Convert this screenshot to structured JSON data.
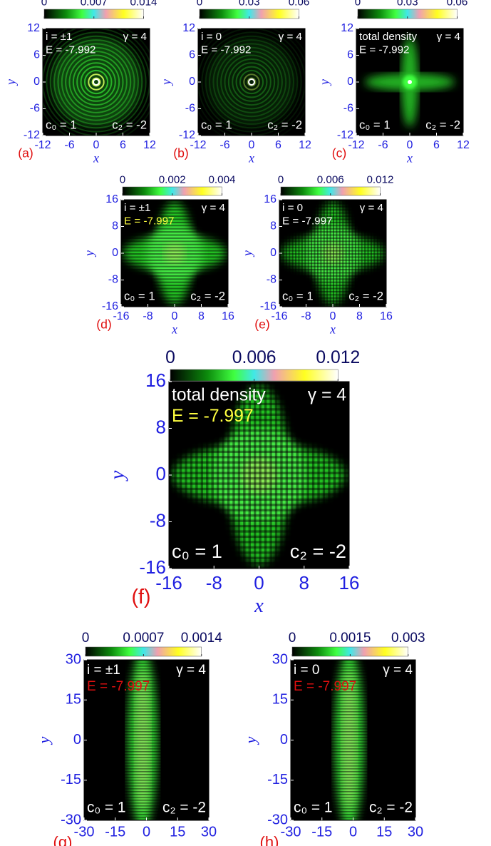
{
  "chart_data": [
    {
      "type": "heatmap",
      "panel_label": "(a)",
      "xlabel": "x",
      "ylabel": "y",
      "xlim": [
        -12,
        12
      ],
      "ylim": [
        -12,
        12
      ],
      "xticks": [
        -12,
        -6,
        0,
        6,
        12
      ],
      "yticks": [
        -12,
        -6,
        0,
        6,
        12
      ],
      "clim": [
        0,
        0.014
      ],
      "cticks": [
        0,
        0.007,
        0.014
      ],
      "annotations": {
        "top_left": "i = ±1",
        "gamma": "γ = 4",
        "energy": "E = -7.992",
        "c0": "c₀ = 1",
        "c2": "c₂ = -2"
      },
      "energy_color": "#ffffff"
    },
    {
      "type": "heatmap",
      "panel_label": "(b)",
      "xlabel": "x",
      "ylabel": "y",
      "xlim": [
        -12,
        12
      ],
      "ylim": [
        -12,
        12
      ],
      "xticks": [
        -12,
        -6,
        0,
        6,
        12
      ],
      "yticks": [
        -12,
        -6,
        0,
        6,
        12
      ],
      "clim": [
        0,
        0.06
      ],
      "cticks": [
        0,
        0.03,
        0.06
      ],
      "annotations": {
        "top_left": "i = 0",
        "gamma": "γ = 4",
        "energy": "E = -7.992",
        "c0": "c₀ = 1",
        "c2": "c₂ = -2"
      },
      "energy_color": "#ffffff"
    },
    {
      "type": "heatmap",
      "panel_label": "(c)",
      "xlabel": "x",
      "ylabel": "y",
      "xlim": [
        -12,
        12
      ],
      "ylim": [
        -12,
        12
      ],
      "xticks": [
        -12,
        -6,
        0,
        6,
        12
      ],
      "yticks": [
        -12,
        -6,
        0,
        6,
        12
      ],
      "clim": [
        0,
        0.06
      ],
      "cticks": [
        0,
        0.03,
        0.06
      ],
      "annotations": {
        "top_left": "total density",
        "gamma": "γ = 4",
        "energy": "E = -7.992",
        "c0": "c₀ = 1",
        "c2": "c₂ = -2"
      },
      "energy_color": "#ffffff"
    },
    {
      "type": "heatmap",
      "panel_label": "(d)",
      "xlabel": "x",
      "ylabel": "y",
      "xlim": [
        -16,
        16
      ],
      "ylim": [
        -16,
        16
      ],
      "xticks": [
        -16,
        -8,
        0,
        8,
        16
      ],
      "yticks": [
        -16,
        -8,
        0,
        8,
        16
      ],
      "clim": [
        0,
        0.004
      ],
      "cticks": [
        0,
        0.002,
        0.004
      ],
      "annotations": {
        "top_left": "i = ±1",
        "gamma": "γ = 4",
        "energy": "E = -7.997",
        "c0": "c₀ = 1",
        "c2": "c₂ = -2"
      },
      "energy_color": "#ffff40"
    },
    {
      "type": "heatmap",
      "panel_label": "(e)",
      "xlabel": "x",
      "ylabel": "y",
      "xlim": [
        -16,
        16
      ],
      "ylim": [
        -16,
        16
      ],
      "xticks": [
        -16,
        -8,
        0,
        8,
        16
      ],
      "yticks": [
        -16,
        -8,
        0,
        8,
        16
      ],
      "clim": [
        0,
        0.012
      ],
      "cticks": [
        0,
        0.006,
        0.012
      ],
      "annotations": {
        "top_left": "i = 0",
        "gamma": "γ = 4",
        "energy": "E = -7.997",
        "c0": "c₀ = 1",
        "c2": "c₂ = -2"
      },
      "energy_color": "#ffffff"
    },
    {
      "type": "heatmap",
      "panel_label": "(f)",
      "xlabel": "x",
      "ylabel": "y",
      "xlim": [
        -16,
        16
      ],
      "ylim": [
        -16,
        16
      ],
      "xticks": [
        -16,
        -8,
        0,
        8,
        16
      ],
      "yticks": [
        -16,
        -8,
        0,
        8,
        16
      ],
      "clim": [
        0,
        0.012
      ],
      "cticks": [
        0,
        0.006,
        0.012
      ],
      "annotations": {
        "top_left": "total density",
        "gamma": "γ = 4",
        "energy": "E = -7.997",
        "c0": "c₀ = 1",
        "c2": "c₂ = -2"
      },
      "energy_color": "#ffff40"
    },
    {
      "type": "heatmap",
      "panel_label": "(g)",
      "xlabel": "x",
      "ylabel": "y",
      "xlim": [
        -30,
        30
      ],
      "ylim": [
        -30,
        30
      ],
      "xticks": [
        -30,
        -15,
        0,
        15,
        30
      ],
      "yticks": [
        -30,
        -15,
        0,
        15,
        30
      ],
      "clim": [
        0,
        0.0014
      ],
      "cticks": [
        0,
        0.0007,
        0.0014
      ],
      "annotations": {
        "top_left": "i = ±1",
        "gamma": "γ = 4",
        "energy": "E = -7.997",
        "c0": "c₀ = 1",
        "c2": "c₂ = -2"
      },
      "energy_color": "#e01010"
    },
    {
      "type": "heatmap",
      "panel_label": "(h)",
      "xlabel": "x",
      "ylabel": "y",
      "xlim": [
        -30,
        30
      ],
      "ylim": [
        -30,
        30
      ],
      "xticks": [
        -30,
        -15,
        0,
        15,
        30
      ],
      "yticks": [
        -30,
        -15,
        0,
        15,
        30
      ],
      "clim": [
        0,
        0.003
      ],
      "cticks": [
        0,
        0.0015,
        0.003
      ],
      "annotations": {
        "top_left": "i = 0",
        "gamma": "γ = 4",
        "energy": "E = -7.997",
        "c0": "c₀ = 1",
        "c2": "c₂ = -2"
      },
      "energy_color": "#e01010"
    }
  ]
}
